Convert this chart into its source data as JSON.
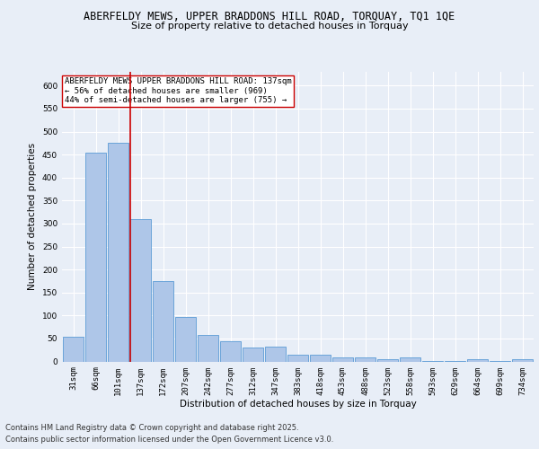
{
  "title_line1": "ABERFELDY MEWS, UPPER BRADDONS HILL ROAD, TORQUAY, TQ1 1QE",
  "title_line2": "Size of property relative to detached houses in Torquay",
  "xlabel": "Distribution of detached houses by size in Torquay",
  "ylabel": "Number of detached properties",
  "categories": [
    "31sqm",
    "66sqm",
    "101sqm",
    "137sqm",
    "172sqm",
    "207sqm",
    "242sqm",
    "277sqm",
    "312sqm",
    "347sqm",
    "383sqm",
    "418sqm",
    "453sqm",
    "488sqm",
    "523sqm",
    "558sqm",
    "593sqm",
    "629sqm",
    "664sqm",
    "699sqm",
    "734sqm"
  ],
  "values": [
    54,
    455,
    475,
    310,
    175,
    96,
    58,
    43,
    30,
    32,
    15,
    15,
    9,
    9,
    5,
    8,
    1,
    1,
    4,
    1,
    5
  ],
  "bar_color": "#aec6e8",
  "bar_edge_color": "#5b9bd5",
  "vline_color": "#cc0000",
  "vline_index": 3,
  "annotation_text": "ABERFELDY MEWS UPPER BRADDONS HILL ROAD: 137sqm\n← 56% of detached houses are smaller (969)\n44% of semi-detached houses are larger (755) →",
  "annotation_box_color": "#ffffff",
  "annotation_box_edge": "#cc0000",
  "ylim": [
    0,
    630
  ],
  "yticks": [
    0,
    50,
    100,
    150,
    200,
    250,
    300,
    350,
    400,
    450,
    500,
    550,
    600
  ],
  "footer_line1": "Contains HM Land Registry data © Crown copyright and database right 2025.",
  "footer_line2": "Contains public sector information licensed under the Open Government Licence v3.0.",
  "background_color": "#e8eef7",
  "plot_background": "#e8eef7",
  "title_fontsize": 8.5,
  "subtitle_fontsize": 8,
  "axis_label_fontsize": 7.5,
  "tick_fontsize": 6.5,
  "annotation_fontsize": 6.5,
  "footer_fontsize": 6
}
